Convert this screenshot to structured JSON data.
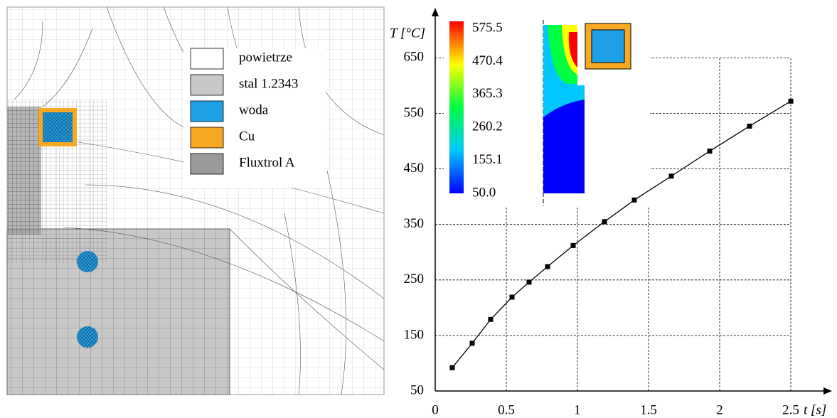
{
  "legend": [
    {
      "label": "powietrze",
      "color": "#ffffff"
    },
    {
      "label": "stal 1.2343",
      "color": "#c8c8c8"
    },
    {
      "label": "woda",
      "color": "#1ea0e6"
    },
    {
      "label": "Cu",
      "color": "#f7a823"
    },
    {
      "label": "Fluxtrol A",
      "color": "#9a9a9a"
    }
  ],
  "colorbar": {
    "ticks": [
      {
        "value": 575.5,
        "label": "575.5"
      },
      {
        "value": 470.4,
        "label": "470.4"
      },
      {
        "value": 365.3,
        "label": "365.3"
      },
      {
        "value": 260.2,
        "label": "260.2"
      },
      {
        "value": 155.1,
        "label": "155.1"
      },
      {
        "value": 50,
        "label": "50.0"
      }
    ],
    "colors": [
      "#0000ff",
      "#00c8ff",
      "#00ff40",
      "#ffff00",
      "#ff0000"
    ]
  },
  "chart_data": {
    "type": "line",
    "y_label": "T [°C]",
    "x_label": "t [s]",
    "x": [
      0.12,
      0.26,
      0.39,
      0.54,
      0.66,
      0.79,
      0.97,
      1.19,
      1.4,
      1.66,
      1.93,
      2.21,
      2.5
    ],
    "series": [
      {
        "color": "#000000",
        "values": [
          92,
          136,
          179,
          219,
          246,
          274,
          312,
          355,
          394,
          437,
          482,
          527,
          572
        ]
      }
    ],
    "xlim": [
      0,
      2.79
    ],
    "ylim": [
      50,
      735
    ],
    "xticks": [
      0,
      0.5,
      1,
      1.5,
      2,
      2.5
    ],
    "yticks": [
      50,
      150,
      250,
      350,
      450,
      550,
      650
    ],
    "grid": true
  }
}
